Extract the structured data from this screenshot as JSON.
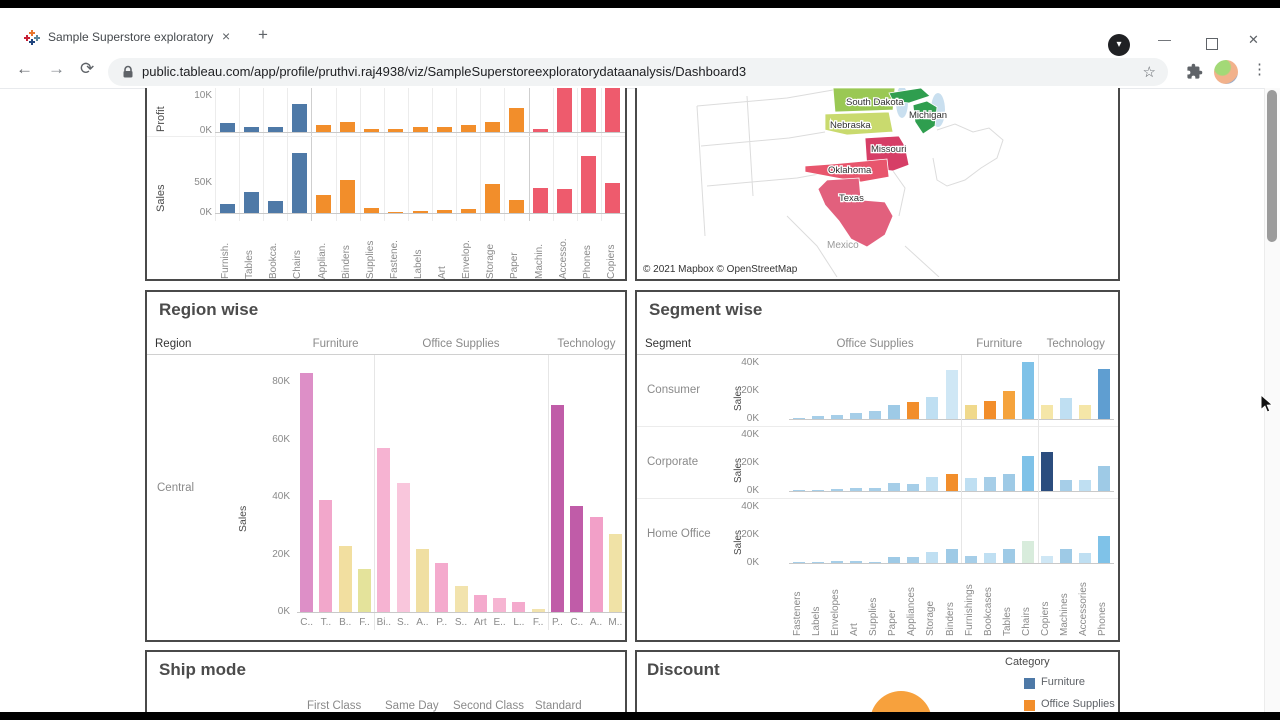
{
  "browser": {
    "tab_title": "Sample Superstore exploratory d",
    "url": "public.tableau.com/app/profile/pruthvi.raj4938/viz/SampleSuperstoreexploratorydataanalysis/Dashboard3",
    "icons": {
      "back": "←",
      "forward": "→",
      "reload": "⟳",
      "star": "☆",
      "menu": "⋮",
      "chevron_down": "▾",
      "close_tab": "×",
      "new_tab": "+"
    },
    "window_controls": {
      "minimize": "—",
      "maximize": "",
      "close": "✕"
    }
  },
  "map_panel": {
    "attribution": "© 2021 Mapbox © OpenStreetMap",
    "mexico_label": "Mexico",
    "states": [
      {
        "name": "South Dakota",
        "color": "#9ac854"
      },
      {
        "name": "Nebraska",
        "color": "#c9da6e"
      },
      {
        "name": "Michigan",
        "color": "#2f9e4f"
      },
      {
        "name": "Missouri",
        "color": "#d63e66"
      },
      {
        "name": "Oklahoma",
        "color": "#e8566d"
      },
      {
        "name": "Texas",
        "color": "#e2607d"
      }
    ]
  },
  "ship_mode_panel": {
    "title": "Ship mode",
    "column_headers": [
      "First Class",
      "Same Day",
      "Second Class",
      "Standard Class"
    ]
  },
  "discount_panel": {
    "title": "Discount",
    "legend_title": "Category",
    "legend_items": [
      {
        "label": "Furniture",
        "color": "#4e79a7"
      },
      {
        "label": "Office Supplies",
        "color": "#f28e2b"
      }
    ],
    "circle_color": "#f7a13d"
  },
  "chart_data": [
    {
      "id": "subcategory",
      "type": "bar",
      "title": "",
      "categories": [
        "Furnish.",
        "Tables",
        "Bookca.",
        "Chairs",
        "Applian.",
        "Binders",
        "Supplies",
        "Fastene.",
        "Labels",
        "Art",
        "Envelop.",
        "Storage",
        "Paper",
        "Machin.",
        "Accesso.",
        "Phones",
        "Copiers"
      ],
      "colors": [
        "#4e79a7",
        "#4e79a7",
        "#4e79a7",
        "#4e79a7",
        "#f28e2b",
        "#f28e2b",
        "#f28e2b",
        "#f28e2b",
        "#f28e2b",
        "#f28e2b",
        "#f28e2b",
        "#f28e2b",
        "#f28e2b",
        "#ee5b6d",
        "#ee5b6d",
        "#ee5b6d",
        "#ee5b6d"
      ],
      "group_sizes": [
        4,
        9,
        4
      ],
      "rows": [
        {
          "measure": "Profit",
          "ticks": [
            "10K",
            "0K"
          ],
          "unit": "K",
          "values": [
            2.5,
            1.5,
            1.5,
            8,
            2,
            3,
            1,
            0.8,
            1.5,
            1.5,
            2,
            3,
            7,
            1,
            14,
            15,
            16
          ]
        },
        {
          "measure": "Sales",
          "ticks": [
            "50K",
            "0K"
          ],
          "unit": "K",
          "values": [
            15,
            35,
            20,
            100,
            30,
            55,
            8,
            2,
            4,
            5,
            6,
            48,
            22,
            42,
            40,
            95,
            50
          ]
        }
      ]
    },
    {
      "id": "region",
      "type": "bar",
      "title": "Region wise",
      "row_dimension": "Region",
      "row_label": "Central",
      "col_headers": [
        "Furniture",
        "Office Supplies",
        "Technology"
      ],
      "ylabel": "Sales",
      "y_ticks": [
        "80K",
        "60K",
        "40K",
        "20K",
        "0K"
      ],
      "ylim": [
        0,
        90
      ],
      "categories": [
        "C..",
        "T..",
        "B..",
        "F..",
        "Bi..",
        "S..",
        "A..",
        "P..",
        "S..",
        "Art",
        "E..",
        "L..",
        "F..",
        "P..",
        "C..",
        "A..",
        "M.."
      ],
      "values": [
        83,
        39,
        23,
        15,
        57,
        45,
        22,
        17,
        9,
        6,
        5,
        3.5,
        1,
        72,
        37,
        33,
        27
      ],
      "colors": [
        "#dd8fc7",
        "#f2a7cb",
        "#f2dfa0",
        "#e4e39b",
        "#f6b3d2",
        "#f9c6dc",
        "#f0dfa2",
        "#f4aacd",
        "#f2e3ad",
        "#f4aacd",
        "#f6b5d2",
        "#f4aacd",
        "#f2e3ad",
        "#c05ca8",
        "#c05ca8",
        "#f2a0c8",
        "#f0e2a6"
      ],
      "group_sizes": [
        4,
        9,
        4
      ]
    },
    {
      "id": "segment",
      "type": "bar",
      "title": "Segment wise",
      "row_dimension": "Segment",
      "col_headers": [
        "Office Supplies",
        "Furniture",
        "Technology"
      ],
      "ylabel": "Sales",
      "y_ticks": [
        "40K",
        "20K",
        "0K"
      ],
      "ylim": [
        0,
        45
      ],
      "categories": [
        "Fasteners",
        "Labels",
        "Envelopes",
        "Art",
        "Supplies",
        "Paper",
        "Appliances",
        "Storage",
        "Binders",
        "Furnishings",
        "Bookcases",
        "Tables",
        "Chairs",
        "Copiers",
        "Machines",
        "Accessories",
        "Phones"
      ],
      "group_sizes": [
        9,
        4,
        4
      ],
      "rows": [
        {
          "label": "Consumer",
          "values": [
            1,
            2,
            3,
            4,
            6,
            10,
            12,
            16,
            35,
            10,
            13,
            20,
            41,
            10,
            15,
            10,
            36
          ],
          "colors": [
            "#a6cee8",
            "#a6cee8",
            "#a6cee8",
            "#a6cee8",
            "#a6cee8",
            "#9ecae6",
            "#f28e2b",
            "#bfdff2",
            "#cfe7f5",
            "#f0d98c",
            "#f28e2b",
            "#f5a33c",
            "#7fc2e8",
            "#f5e6a8",
            "#bfdff2",
            "#f5e6a8",
            "#5f9ed1"
          ]
        },
        {
          "label": "Corporate",
          "values": [
            0.5,
            1,
            1.5,
            2,
            2,
            6,
            5,
            10,
            12,
            9,
            10,
            12,
            25,
            28,
            8,
            8,
            18
          ],
          "colors": [
            "#a6cee8",
            "#a6cee8",
            "#a6cee8",
            "#a6cee8",
            "#a6cee8",
            "#a6cee8",
            "#a6cee8",
            "#bfdff2",
            "#f28e2b",
            "#bfdff2",
            "#a6cee8",
            "#9ecae6",
            "#7fc2e8",
            "#2b4d7e",
            "#a6cee8",
            "#bfdff2",
            "#9ecae6"
          ]
        },
        {
          "label": "Home Office",
          "values": [
            0.3,
            0.7,
            1.5,
            1.5,
            1,
            4,
            4,
            8,
            10,
            5,
            7,
            10,
            16,
            5,
            10,
            7,
            19
          ],
          "colors": [
            "#a6cee8",
            "#a6cee8",
            "#a6cee8",
            "#a6cee8",
            "#a6cee8",
            "#9ecae6",
            "#a6cee8",
            "#bfdff2",
            "#9ecae6",
            "#a6cee8",
            "#bfdff2",
            "#9ecae6",
            "#d8ecdc",
            "#cfe7f5",
            "#9ecae6",
            "#bfdff2",
            "#7fc2e8"
          ]
        }
      ]
    }
  ]
}
